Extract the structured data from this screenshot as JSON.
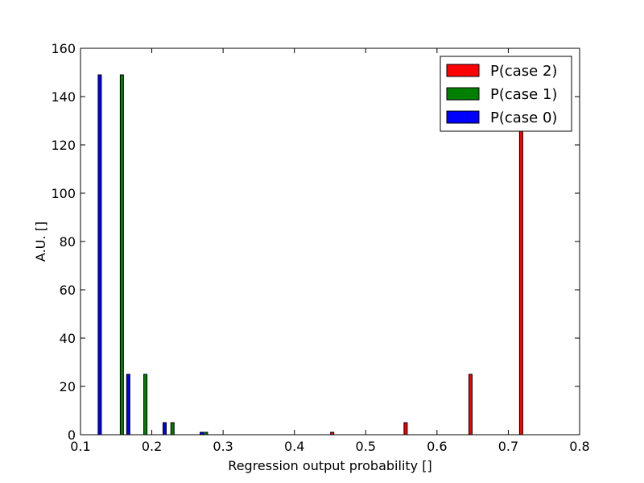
{
  "chart_data": {
    "type": "bar",
    "title": "",
    "xlabel": "Regression output probability []",
    "ylabel": "A.U. []",
    "xlim": [
      0.1,
      0.8
    ],
    "ylim": [
      0,
      160
    ],
    "xticks": [
      "0.1",
      "0.2",
      "0.3",
      "0.4",
      "0.5",
      "0.6",
      "0.7",
      "0.8"
    ],
    "yticks": [
      "0",
      "20",
      "40",
      "60",
      "80",
      "100",
      "120",
      "140",
      "160"
    ],
    "grid": false,
    "legend_position": "top-right",
    "series": [
      {
        "name": "P(case 2)",
        "color": "#ff0000",
        "bars": [
          {
            "x": 0.453,
            "value": 1
          },
          {
            "x": 0.556,
            "value": 5
          },
          {
            "x": 0.647,
            "value": 25
          },
          {
            "x": 0.718,
            "value": 149
          }
        ]
      },
      {
        "name": "P(case 1)",
        "color": "#008000",
        "bars": [
          {
            "x": 0.158,
            "value": 149
          },
          {
            "x": 0.191,
            "value": 25
          },
          {
            "x": 0.229,
            "value": 5
          },
          {
            "x": 0.276,
            "value": 1
          }
        ]
      },
      {
        "name": "P(case 0)",
        "color": "#0000ff",
        "bars": [
          {
            "x": 0.127,
            "value": 149
          },
          {
            "x": 0.167,
            "value": 25
          },
          {
            "x": 0.218,
            "value": 5
          },
          {
            "x": 0.27,
            "value": 1
          }
        ]
      }
    ]
  }
}
